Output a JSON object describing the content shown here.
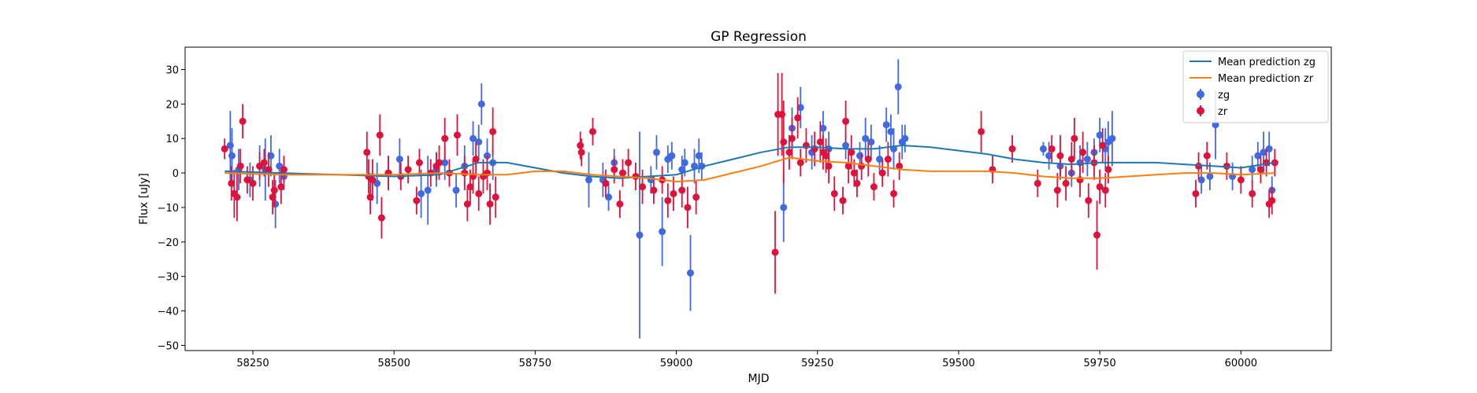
{
  "chart_data": {
    "type": "scatter",
    "title": "GP Regression",
    "xlabel": "MJD",
    "ylabel": "Flux [uJy]",
    "xlim": [
      58130,
      60160
    ],
    "ylim": [
      -51.5,
      36.5
    ],
    "xticks": [
      58250,
      58500,
      58750,
      59000,
      59250,
      59500,
      59750,
      60000
    ],
    "yticks": [
      -50,
      -40,
      -30,
      -20,
      -10,
      0,
      10,
      20,
      30
    ],
    "grid": false,
    "legend_position": "top-right",
    "colors": {
      "zg_line": "#1f77b4",
      "zr_line": "#ff7f0e",
      "zg_points": "#4169e1",
      "zr_points": "#dc143c"
    },
    "lines": [
      {
        "name": "Mean prediction zg",
        "color": "#1f77b4",
        "x": [
          58200,
          58300,
          58400,
          58500,
          58580,
          58650,
          58700,
          58750,
          58800,
          58850,
          58900,
          58950,
          59000,
          59050,
          59100,
          59150,
          59200,
          59250,
          59300,
          59350,
          59400,
          59450,
          59500,
          59550,
          59600,
          59650,
          59700,
          59750,
          59800,
          59850,
          59900,
          59950,
          60000,
          60060
        ],
        "y": [
          0.5,
          0.0,
          -0.5,
          -1.0,
          -0.5,
          3.0,
          3.0,
          1.5,
          0.0,
          -1.0,
          -1.5,
          -1.0,
          -0.5,
          2.0,
          4.0,
          6.0,
          7.5,
          7.5,
          7.0,
          7.0,
          8.0,
          7.5,
          6.5,
          5.5,
          4.0,
          3.0,
          2.5,
          3.0,
          3.0,
          3.0,
          2.5,
          2.0,
          1.5,
          3.0
        ]
      },
      {
        "name": "Mean prediction zr",
        "color": "#ff7f0e",
        "x": [
          58200,
          58300,
          58400,
          58500,
          58580,
          58650,
          58700,
          58750,
          58800,
          58850,
          58900,
          58950,
          59000,
          59050,
          59100,
          59150,
          59200,
          59250,
          59300,
          59350,
          59400,
          59450,
          59500,
          59550,
          59600,
          59650,
          59700,
          59750,
          59800,
          59850,
          59900,
          59950,
          60000,
          60060
        ],
        "y": [
          0.0,
          -0.5,
          -0.5,
          -0.5,
          0.0,
          -0.5,
          -0.5,
          0.5,
          0.5,
          -0.5,
          -1.0,
          -1.5,
          -2.5,
          -2.0,
          0.0,
          2.0,
          4.5,
          3.5,
          3.0,
          2.0,
          1.0,
          0.5,
          0.5,
          0.5,
          0.0,
          -1.0,
          -1.5,
          -1.5,
          -1.0,
          -0.5,
          0.0,
          0.0,
          -0.5,
          0.0
        ]
      }
    ],
    "series": [
      {
        "name": "zg",
        "color": "#4169e1",
        "points": [
          [
            58210,
            8,
            10
          ],
          [
            58213,
            5,
            8
          ],
          [
            58225,
            1,
            6
          ],
          [
            58245,
            -2,
            5
          ],
          [
            58262,
            2,
            6
          ],
          [
            58272,
            1,
            9
          ],
          [
            58282,
            5,
            6
          ],
          [
            58290,
            -9,
            7
          ],
          [
            58297,
            2,
            5
          ],
          [
            58305,
            -1,
            4
          ],
          [
            58470,
            -3,
            6
          ],
          [
            58490,
            0,
            5
          ],
          [
            58510,
            4,
            6
          ],
          [
            58548,
            -6,
            7
          ],
          [
            58560,
            -5,
            10
          ],
          [
            58575,
            1,
            5
          ],
          [
            58590,
            3,
            5
          ],
          [
            58610,
            -5,
            5
          ],
          [
            58625,
            2,
            6
          ],
          [
            58640,
            10,
            5
          ],
          [
            58650,
            9,
            5
          ],
          [
            58655,
            20,
            6
          ],
          [
            58665,
            5,
            5
          ],
          [
            58675,
            3,
            5
          ],
          [
            58845,
            -2,
            8
          ],
          [
            58870,
            -2,
            5
          ],
          [
            58880,
            -7,
            4
          ],
          [
            58890,
            3,
            4
          ],
          [
            58935,
            -18,
            30
          ],
          [
            58955,
            -2,
            4
          ],
          [
            58965,
            6,
            5
          ],
          [
            58975,
            -17,
            10
          ],
          [
            58985,
            4,
            4
          ],
          [
            58992,
            5,
            4
          ],
          [
            59010,
            1,
            4
          ],
          [
            59015,
            3,
            4
          ],
          [
            59025,
            -29,
            11
          ],
          [
            59032,
            2,
            5
          ],
          [
            59040,
            5,
            5
          ],
          [
            59045,
            2,
            4
          ],
          [
            59190,
            -10,
            10
          ],
          [
            59205,
            13,
            6
          ],
          [
            59220,
            19,
            6
          ],
          [
            59240,
            6,
            5
          ],
          [
            59260,
            13,
            5
          ],
          [
            59270,
            7,
            5
          ],
          [
            59300,
            8,
            4
          ],
          [
            59325,
            5,
            4
          ],
          [
            59335,
            10,
            6
          ],
          [
            59345,
            9,
            5
          ],
          [
            59360,
            4,
            4
          ],
          [
            59372,
            14,
            5
          ],
          [
            59380,
            12,
            5
          ],
          [
            59385,
            7,
            6
          ],
          [
            59393,
            25,
            8
          ],
          [
            59400,
            9,
            5
          ],
          [
            59405,
            10,
            4
          ],
          [
            59650,
            7,
            2
          ],
          [
            59660,
            5,
            4
          ],
          [
            59680,
            2,
            4
          ],
          [
            59700,
            0,
            4
          ],
          [
            59715,
            3,
            5
          ],
          [
            59728,
            4,
            5
          ],
          [
            59740,
            6,
            4
          ],
          [
            59750,
            11,
            5
          ],
          [
            59760,
            7,
            6
          ],
          [
            59765,
            9,
            6
          ],
          [
            59772,
            10,
            8
          ],
          [
            59930,
            -2,
            4
          ],
          [
            59945,
            -1,
            4
          ],
          [
            59955,
            14,
            10
          ],
          [
            59985,
            -1,
            4
          ],
          [
            60020,
            1,
            4
          ],
          [
            60030,
            5,
            4
          ],
          [
            60040,
            6,
            6
          ],
          [
            60050,
            7,
            5
          ],
          [
            60055,
            -5,
            4
          ]
        ]
      },
      {
        "name": "zr",
        "color": "#dc143c",
        "points": [
          [
            58200,
            7,
            3
          ],
          [
            58212,
            -3,
            5
          ],
          [
            58217,
            -6,
            7
          ],
          [
            58222,
            -7,
            7
          ],
          [
            58228,
            2,
            5
          ],
          [
            58232,
            15,
            5
          ],
          [
            58240,
            -2,
            4
          ],
          [
            58250,
            -3,
            5
          ],
          [
            58262,
            2,
            4
          ],
          [
            58270,
            3,
            4
          ],
          [
            58278,
            1,
            5
          ],
          [
            58285,
            -7,
            5
          ],
          [
            58288,
            -5,
            5
          ],
          [
            58300,
            -4,
            5
          ],
          [
            58305,
            1,
            4
          ],
          [
            58452,
            6,
            6
          ],
          [
            58455,
            -1,
            5
          ],
          [
            58458,
            -7,
            5
          ],
          [
            58462,
            -2,
            6
          ],
          [
            58475,
            11,
            6
          ],
          [
            58478,
            -13,
            6
          ],
          [
            58490,
            0,
            5
          ],
          [
            58512,
            -1,
            4
          ],
          [
            58525,
            1,
            4
          ],
          [
            58540,
            -8,
            4
          ],
          [
            58545,
            3,
            4
          ],
          [
            58565,
            0,
            4
          ],
          [
            58575,
            2,
            4
          ],
          [
            58580,
            3,
            5
          ],
          [
            58590,
            10,
            6
          ],
          [
            58598,
            0,
            4
          ],
          [
            58612,
            11,
            6
          ],
          [
            58625,
            0,
            5
          ],
          [
            58630,
            -9,
            5
          ],
          [
            58635,
            -4,
            5
          ],
          [
            58640,
            -1,
            5
          ],
          [
            58645,
            4,
            5
          ],
          [
            58650,
            -6,
            5
          ],
          [
            58658,
            -1,
            5
          ],
          [
            58665,
            0,
            5
          ],
          [
            58670,
            -9,
            6
          ],
          [
            58675,
            12,
            7
          ],
          [
            58680,
            -7,
            6
          ],
          [
            58830,
            8,
            4
          ],
          [
            58832,
            6,
            4
          ],
          [
            58852,
            12,
            4
          ],
          [
            58875,
            -3,
            4
          ],
          [
            58890,
            1,
            4
          ],
          [
            58900,
            -9,
            4
          ],
          [
            58905,
            0,
            4
          ],
          [
            58915,
            3,
            4
          ],
          [
            58928,
            -1,
            4
          ],
          [
            58940,
            -4,
            5
          ],
          [
            58960,
            -5,
            4
          ],
          [
            58975,
            -2,
            4
          ],
          [
            58985,
            -8,
            5
          ],
          [
            58995,
            -6,
            5
          ],
          [
            59010,
            -5,
            5
          ],
          [
            59020,
            -10,
            6
          ],
          [
            59035,
            -7,
            5
          ],
          [
            59175,
            -23,
            12
          ],
          [
            59180,
            17,
            12
          ],
          [
            59187,
            17,
            12
          ],
          [
            59190,
            9,
            12
          ],
          [
            59200,
            6,
            5
          ],
          [
            59205,
            10,
            6
          ],
          [
            59215,
            16,
            6
          ],
          [
            59220,
            3,
            4
          ],
          [
            59230,
            8,
            5
          ],
          [
            59245,
            7,
            5
          ],
          [
            59255,
            9,
            6
          ],
          [
            59260,
            6,
            5
          ],
          [
            59265,
            5,
            5
          ],
          [
            59270,
            2,
            5
          ],
          [
            59280,
            -6,
            5
          ],
          [
            59295,
            -8,
            4
          ],
          [
            59300,
            15,
            6
          ],
          [
            59305,
            2,
            5
          ],
          [
            59310,
            6,
            5
          ],
          [
            59315,
            0,
            4
          ],
          [
            59320,
            -3,
            4
          ],
          [
            59328,
            2,
            4
          ],
          [
            59340,
            4,
            5
          ],
          [
            59350,
            -4,
            4
          ],
          [
            59365,
            0,
            4
          ],
          [
            59375,
            4,
            5
          ],
          [
            59385,
            -6,
            4
          ],
          [
            59395,
            2,
            4
          ],
          [
            59540,
            12,
            6
          ],
          [
            59560,
            1,
            4
          ],
          [
            59595,
            7,
            4
          ],
          [
            59640,
            -3,
            4
          ],
          [
            59665,
            7,
            4
          ],
          [
            59675,
            -5,
            5
          ],
          [
            59680,
            5,
            6
          ],
          [
            59690,
            -3,
            5
          ],
          [
            59700,
            4,
            5
          ],
          [
            59705,
            10,
            6
          ],
          [
            59715,
            -2,
            5
          ],
          [
            59720,
            6,
            6
          ],
          [
            59730,
            -8,
            5
          ],
          [
            59740,
            3,
            5
          ],
          [
            59745,
            -18,
            10
          ],
          [
            59750,
            -4,
            5
          ],
          [
            59755,
            8,
            5
          ],
          [
            59760,
            -5,
            5
          ],
          [
            59765,
            1,
            4
          ],
          [
            59920,
            -6,
            4
          ],
          [
            59925,
            2,
            4
          ],
          [
            59940,
            5,
            4
          ],
          [
            59975,
            2,
            4
          ],
          [
            60000,
            -2,
            4
          ],
          [
            60020,
            -6,
            4
          ],
          [
            60035,
            1,
            4
          ],
          [
            60045,
            3,
            4
          ],
          [
            60050,
            -9,
            4
          ],
          [
            60055,
            -8,
            4
          ],
          [
            60060,
            3,
            4
          ]
        ]
      }
    ]
  }
}
